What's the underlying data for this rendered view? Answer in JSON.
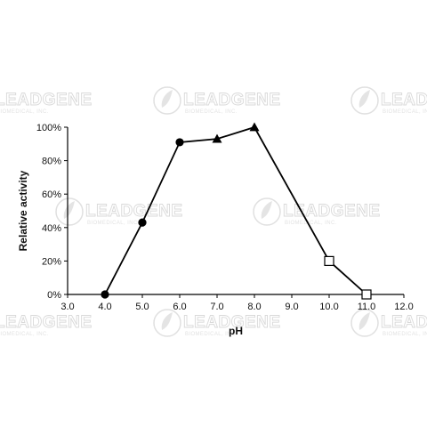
{
  "watermark": {
    "brand": "LEADGENE",
    "tagline": "BIOMEDICAL, INC."
  },
  "chart_data": {
    "type": "line",
    "xlabel": "pH",
    "ylabel": "Relative activity",
    "xlim": [
      3.0,
      12.0
    ],
    "ylim": [
      0,
      100
    ],
    "x_ticks": [
      "3.0",
      "4.0",
      "5.0",
      "6.0",
      "7.0",
      "8.0",
      "9.0",
      "10.0",
      "11.0",
      "12.0"
    ],
    "y_ticks": [
      "0%",
      "20%",
      "40%",
      "60%",
      "80%",
      "100%"
    ],
    "grid": false,
    "legend": "none",
    "series": [
      {
        "points": [
          {
            "x": 4.0,
            "y": 0,
            "marker": "circle"
          },
          {
            "x": 5.0,
            "y": 43,
            "marker": "circle"
          },
          {
            "x": 6.0,
            "y": 91,
            "marker": "circle"
          },
          {
            "x": 7.0,
            "y": 93,
            "marker": "triangle"
          },
          {
            "x": 8.0,
            "y": 100,
            "marker": "triangle"
          },
          {
            "x": 10.0,
            "y": 20,
            "marker": "open-square"
          },
          {
            "x": 11.0,
            "y": 0,
            "marker": "open-square"
          }
        ]
      }
    ]
  }
}
